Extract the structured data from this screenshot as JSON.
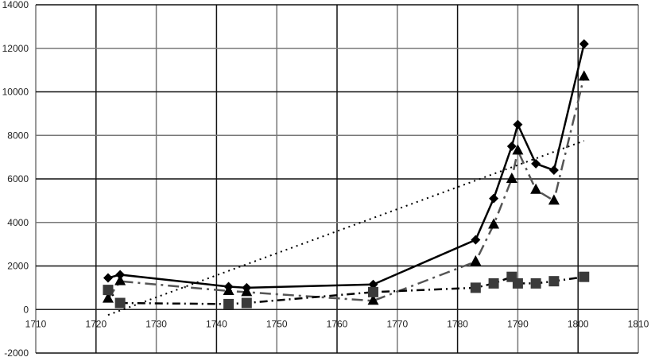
{
  "chart_data": {
    "type": "line",
    "title": "",
    "xlabel": "",
    "ylabel": "",
    "xlim": [
      1710,
      1810
    ],
    "ylim": [
      -2000,
      14000
    ],
    "xticks": [
      1710,
      1720,
      1730,
      1740,
      1750,
      1760,
      1770,
      1780,
      1790,
      1800,
      1810
    ],
    "yticks": [
      -2000,
      0,
      2000,
      4000,
      6000,
      8000,
      10000,
      12000,
      14000
    ],
    "grid": true,
    "x": [
      1722,
      1724,
      1742,
      1745,
      1766,
      1783,
      1786,
      1789,
      1790,
      1793,
      1796,
      1801
    ],
    "series": [
      {
        "name": "diamond-solid",
        "marker": "diamond",
        "dash": "",
        "color": "#000000",
        "values": [
          1450,
          1600,
          1050,
          1000,
          1150,
          3200,
          5100,
          7500,
          8500,
          6700,
          6400,
          12200
        ]
      },
      {
        "name": "triangle-dashdot",
        "marker": "triangle",
        "dash": "14,6,3,6",
        "color": "#555555",
        "values": [
          500,
          1300,
          850,
          800,
          400,
          2200,
          3900,
          6000,
          7300,
          5500,
          5000,
          10700
        ]
      },
      {
        "name": "square-dashdot",
        "marker": "square",
        "dash": "10,5,2,5",
        "color": "#000000",
        "markerColor": "#3a3a3a",
        "values": [
          900,
          300,
          250,
          300,
          800,
          1000,
          1200,
          1500,
          1200,
          1200,
          1300,
          1500
        ]
      },
      {
        "name": "trend-dotted",
        "marker": "none",
        "dash": "2,5",
        "color": "#000000",
        "x": [
          1722,
          1801
        ],
        "values": [
          -250,
          7750
        ]
      }
    ]
  }
}
